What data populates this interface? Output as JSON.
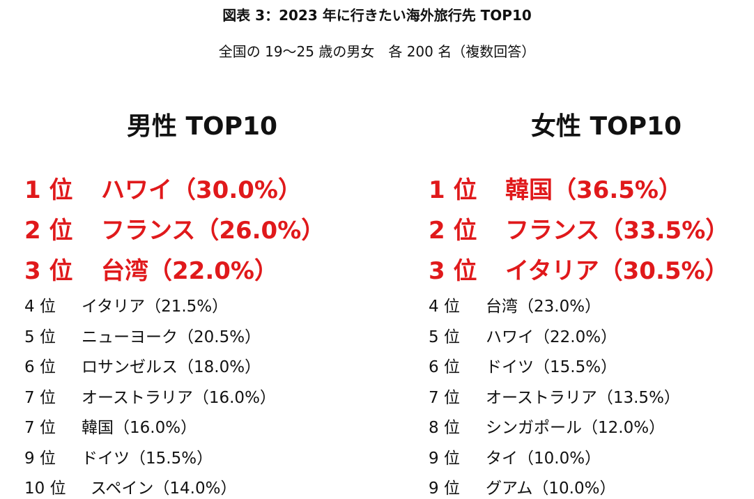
{
  "header": {
    "title": "図表 3：2023 年に行きたい海外旅行先 TOP10",
    "subtitle": "全国の 19〜25 歳の男女　各 200 名（複数回答）"
  },
  "columns": [
    {
      "title": "男性 TOP10",
      "items": [
        {
          "rank": "1 位",
          "name": "ハワイ",
          "share": "（30.0%）"
        },
        {
          "rank": "2 位",
          "name": "フランス",
          "share": "（26.0%）"
        },
        {
          "rank": "3 位",
          "name": "台湾",
          "share": "（22.0%）"
        },
        {
          "rank": "4 位",
          "name": "イタリア",
          "share": "（21.5%）"
        },
        {
          "rank": "5 位",
          "name": "ニューヨーク",
          "share": "（20.5%）"
        },
        {
          "rank": "6 位",
          "name": "ロサンゼルス",
          "share": "（18.0%）"
        },
        {
          "rank": "7 位",
          "name": "オーストラリア",
          "share": "（16.0%）"
        },
        {
          "rank": "7 位",
          "name": "韓国",
          "share": "（16.0%）"
        },
        {
          "rank": "9 位",
          "name": "ドイツ",
          "share": "（15.5%）"
        },
        {
          "rank": "10 位",
          "name": "スペイン",
          "share": "（14.0%）"
        }
      ]
    },
    {
      "title": "女性 TOP10",
      "items": [
        {
          "rank": "1 位",
          "name": "韓国",
          "share": "（36.5%）"
        },
        {
          "rank": "2 位",
          "name": "フランス",
          "share": "（33.5%）"
        },
        {
          "rank": "3 位",
          "name": "イタリア",
          "share": "（30.5%）"
        },
        {
          "rank": "4 位",
          "name": "台湾",
          "share": "（23.0%）"
        },
        {
          "rank": "5 位",
          "name": "ハワイ",
          "share": "（22.0%）"
        },
        {
          "rank": "6 位",
          "name": "ドイツ",
          "share": "（15.5%）"
        },
        {
          "rank": "7 位",
          "name": "オーストラリア",
          "share": "（13.5%）"
        },
        {
          "rank": "8 位",
          "name": "シンガポール",
          "share": "（12.0%）"
        },
        {
          "rank": "9 位",
          "name": "タイ",
          "share": "（10.0%）"
        },
        {
          "rank": "9 位",
          "name": "グアム",
          "share": "（10.0%）"
        }
      ]
    }
  ]
}
